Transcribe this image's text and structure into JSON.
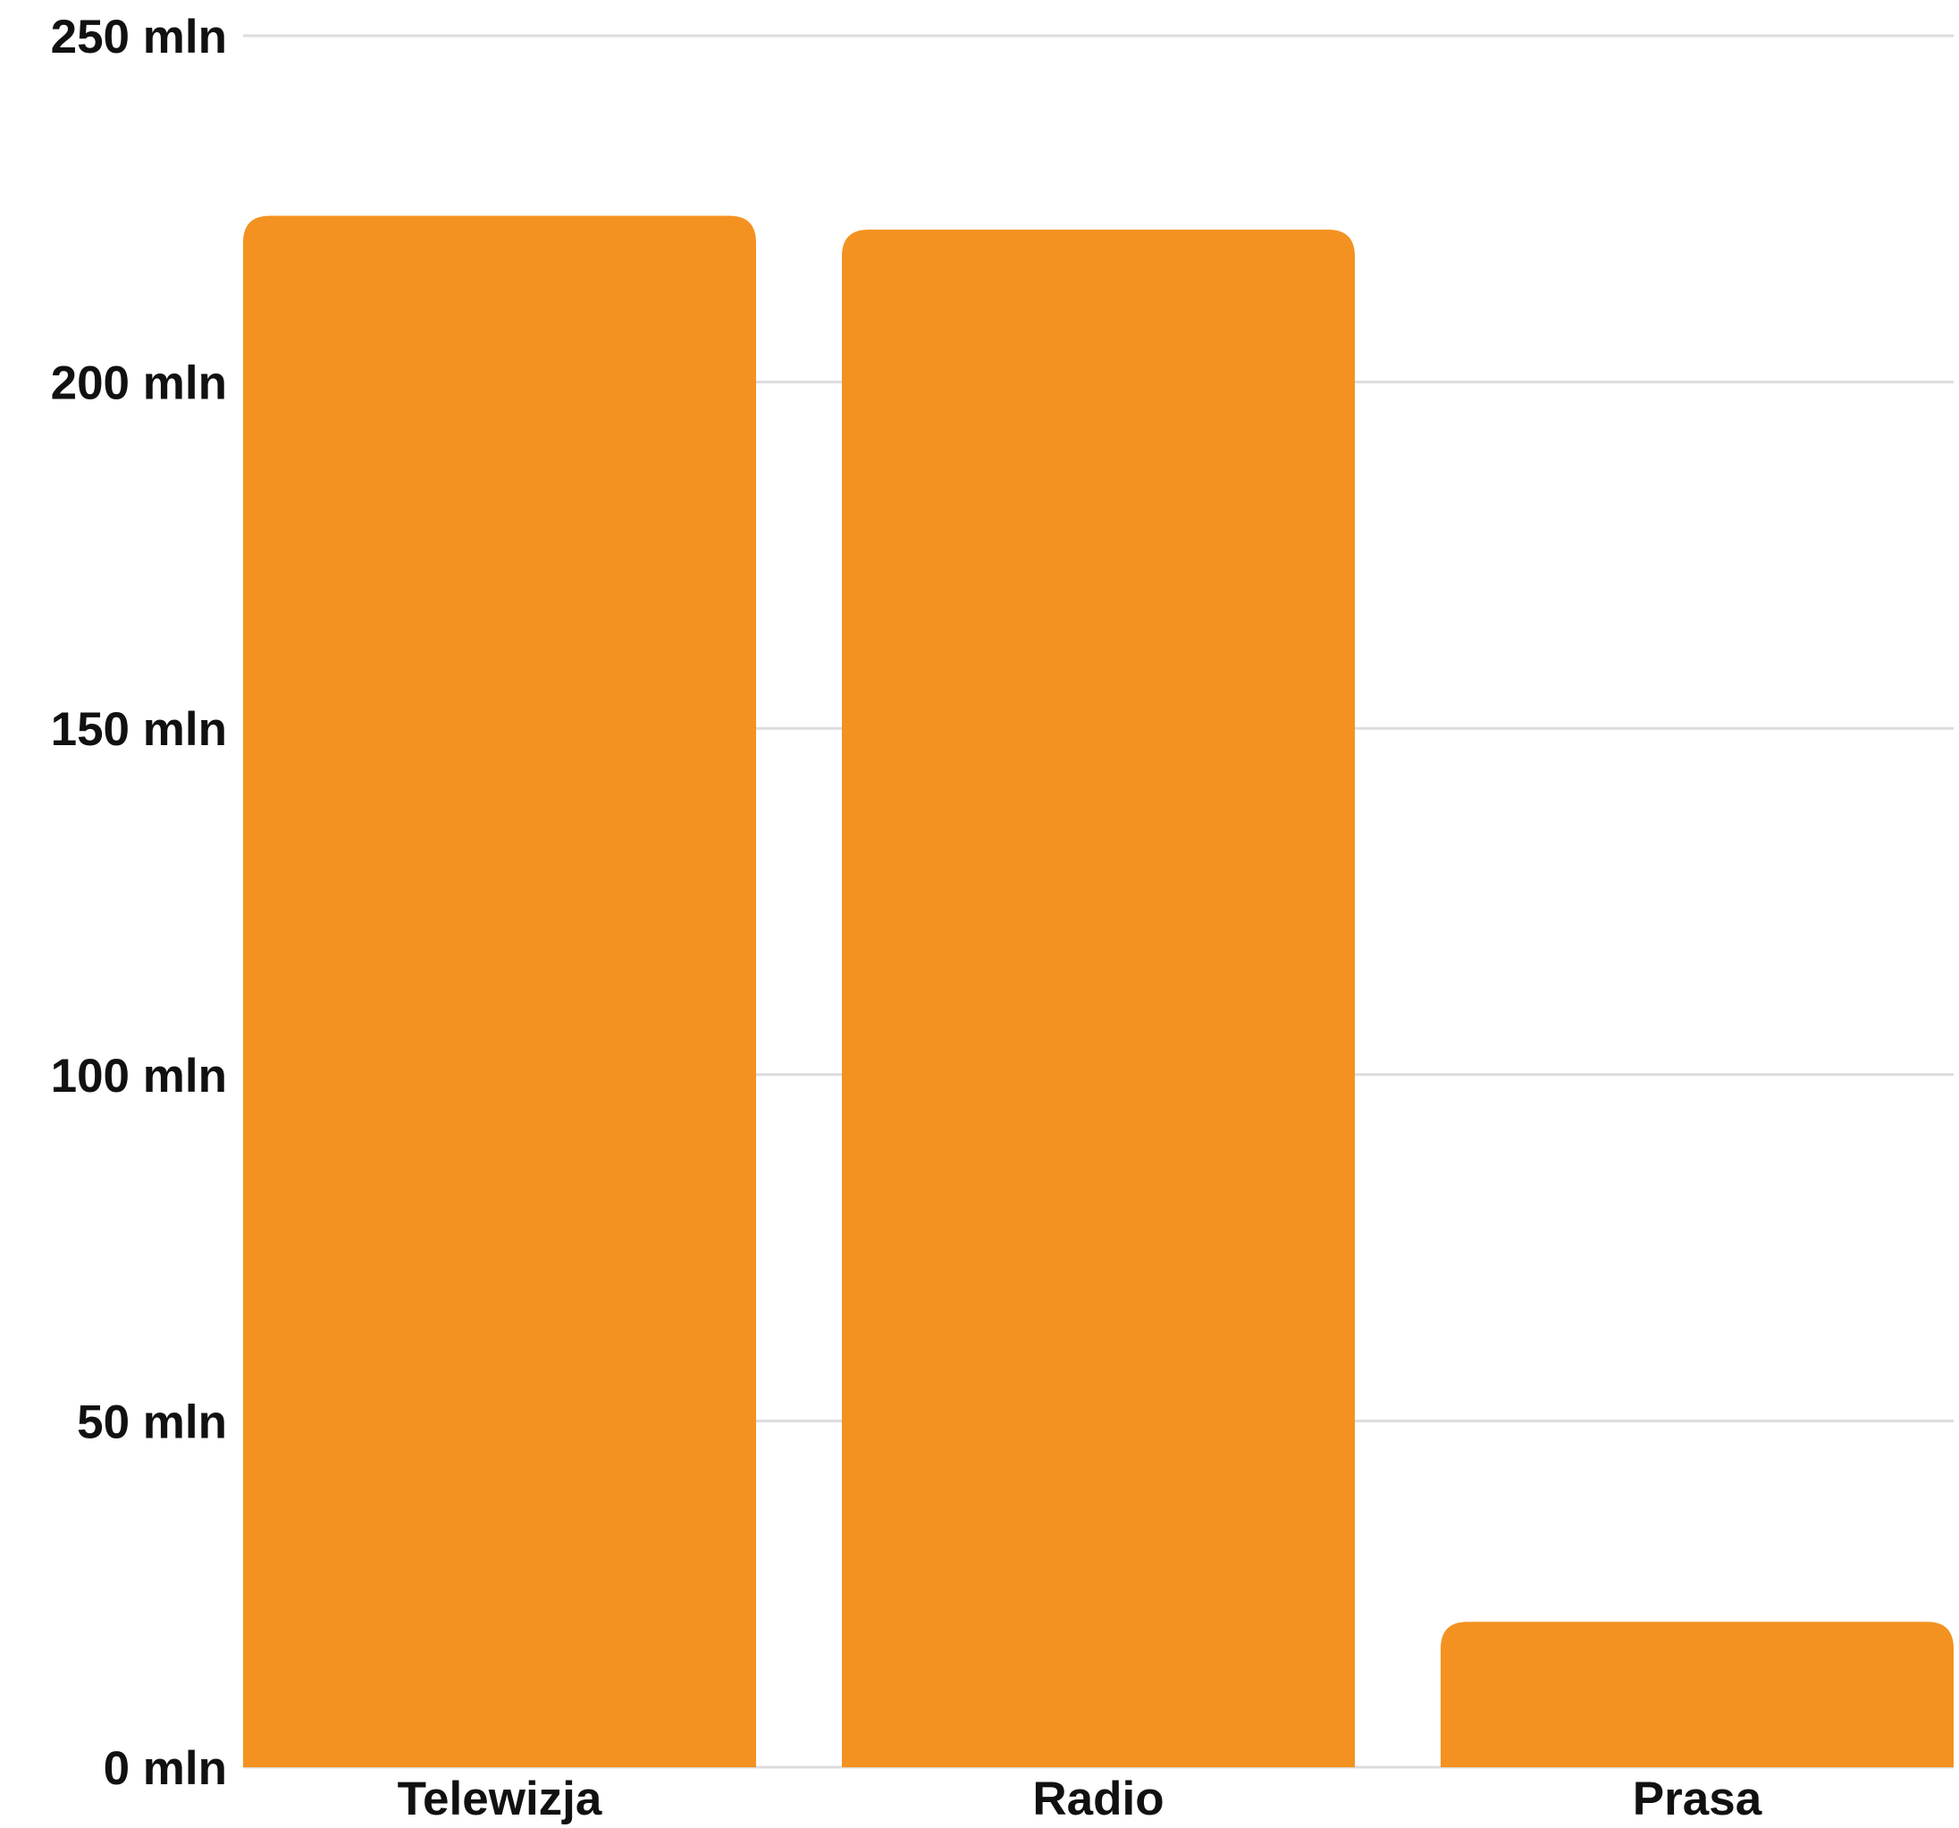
{
  "chart_data": {
    "type": "bar",
    "categories": [
      "Telewizja",
      "Radio",
      "Prasa"
    ],
    "values": [
      224,
      222,
      21
    ],
    "y_ticks": [
      {
        "value": 0,
        "label": "0 mln"
      },
      {
        "value": 50,
        "label": "50 mln"
      },
      {
        "value": 100,
        "label": "100 mln"
      },
      {
        "value": 150,
        "label": "150 mln"
      },
      {
        "value": 200,
        "label": "200 mln"
      },
      {
        "value": 250,
        "label": "250 mln"
      }
    ],
    "ylim": [
      0,
      250
    ],
    "grid": true,
    "bar_color": "#F39221",
    "title": "",
    "xlabel": "",
    "ylabel": ""
  }
}
